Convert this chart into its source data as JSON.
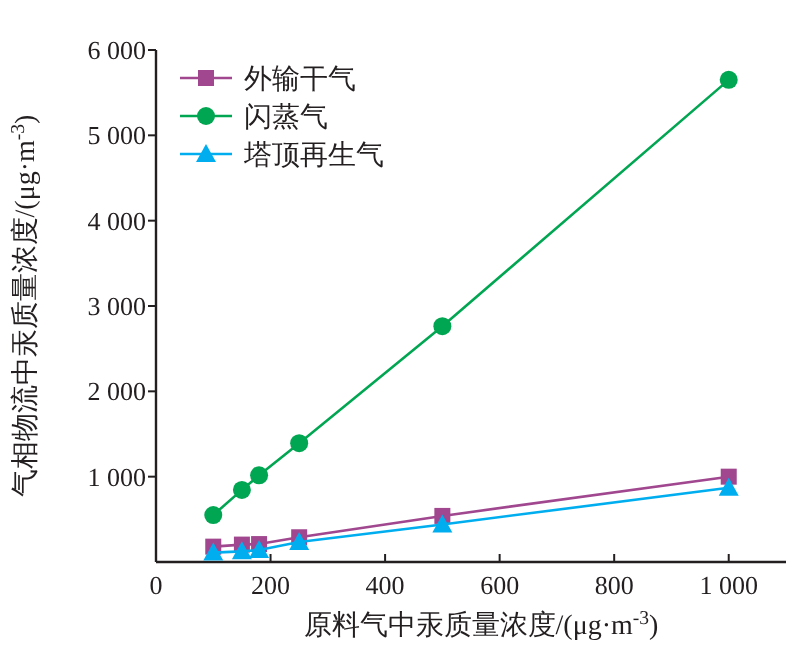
{
  "chart_data": {
    "type": "line",
    "xlabel": "原料气中汞质量浓度/(μg·m$^{-3}$)",
    "ylabel": "气相物流中汞质量浓度/(μg·m$^{-3}$)",
    "x": [
      100,
      150,
      180,
      250,
      500,
      1000
    ],
    "series": [
      {
        "name": "外输干气",
        "color": "#a0478f",
        "marker": "square",
        "values": [
          180,
          204,
          210,
          290,
          540,
          1000
        ]
      },
      {
        "name": "闪蒸气",
        "color": "#00a651",
        "marker": "circle",
        "values": [
          550,
          845,
          1016,
          1392,
          2763,
          5650
        ]
      },
      {
        "name": "塔顶再生气",
        "color": "#00aeef",
        "marker": "triangle",
        "values": [
          110,
          125,
          140,
          235,
          440,
          870
        ]
      }
    ],
    "xlim": [
      0,
      1100
    ],
    "ylim": [
      0,
      6000
    ],
    "xticks": [
      0,
      200,
      400,
      600,
      800,
      {
        "value": 1000,
        "label": "1 000"
      }
    ],
    "yticks": [
      {
        "value": 1000,
        "label": "1 000"
      },
      {
        "value": 2000,
        "label": "2 000"
      },
      {
        "value": 3000,
        "label": "3 000"
      },
      {
        "value": 4000,
        "label": "4 000"
      },
      {
        "value": 5000,
        "label": "5 000"
      },
      {
        "value": 6000,
        "label": "6 000"
      }
    ],
    "legend": "top left",
    "grid": false,
    "line_style": "solid"
  }
}
